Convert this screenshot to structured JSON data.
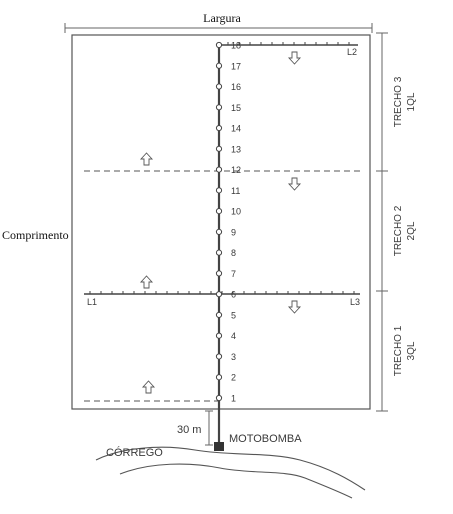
{
  "labels": {
    "width": "Largura",
    "length": "Comprimento",
    "stream": "CÓRREGO",
    "pump": "MOTOBOMBA",
    "distance": "30 m"
  },
  "lines": {
    "l1": "L1",
    "l2": "L2",
    "l3": "L3"
  },
  "stretches": [
    {
      "name": "TRECHO 3",
      "flow": "1QL"
    },
    {
      "name": "TRECHO 2",
      "flow": "2QL"
    },
    {
      "name": "TRECHO 1",
      "flow": "3QL"
    }
  ],
  "valves": [
    "1",
    "2",
    "3",
    "4",
    "5",
    "6",
    "7",
    "8",
    "9",
    "10",
    "11",
    "12",
    "13",
    "14",
    "15",
    "16",
    "17",
    "18"
  ],
  "colors": {
    "line": "#4a4a4a",
    "text": "#3a3a3a",
    "background": "#ffffff"
  }
}
